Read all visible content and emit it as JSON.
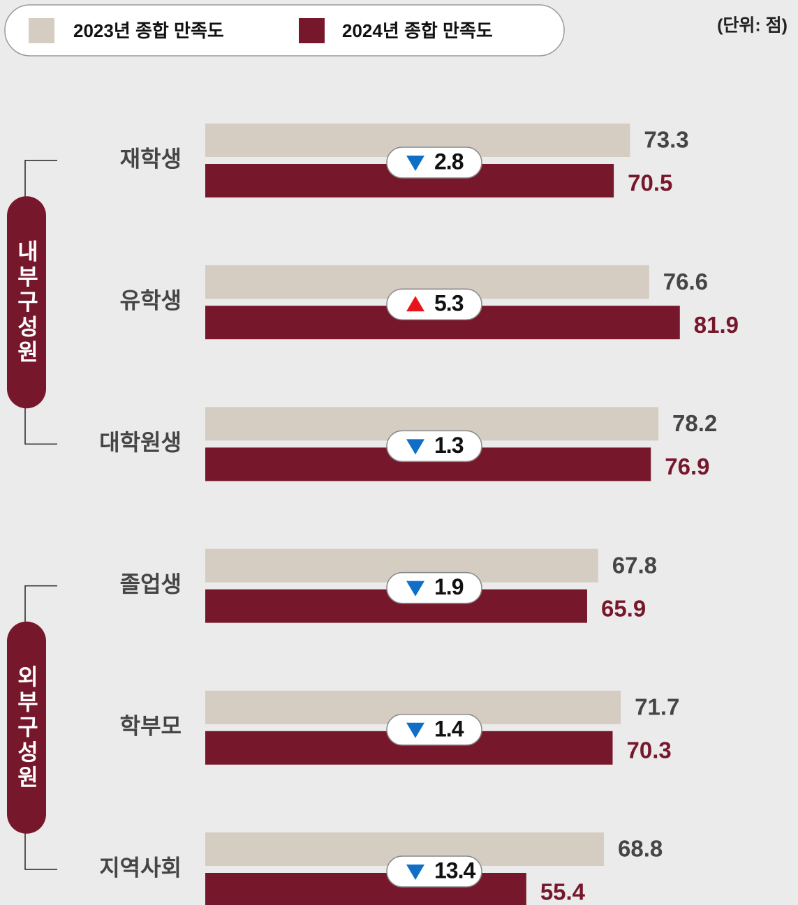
{
  "chart_data": {
    "type": "bar",
    "orientation": "horizontal",
    "unit": "(단위: 점)",
    "series": [
      {
        "name": "2023년 종합 만족도",
        "color": "#d5ccc2",
        "label_color": "#454545",
        "values": [
          73.3,
          76.6,
          78.2,
          67.8,
          71.7,
          68.8
        ]
      },
      {
        "name": "2024년 종합 만족도",
        "color": "#76172b",
        "label_color": "#76172b",
        "values": [
          70.5,
          81.9,
          76.9,
          65.9,
          70.3,
          55.4
        ]
      }
    ],
    "groups": [
      {
        "name": "내부구성원",
        "categories": [
          "재학생",
          "유학생",
          "대학원생"
        ]
      },
      {
        "name": "외부구성원",
        "categories": [
          "졸업생",
          "학부모",
          "지역사회"
        ]
      }
    ],
    "diffs": [
      2.8,
      5.3,
      1.3,
      1.9,
      1.4,
      13.4
    ],
    "up_color": "#e8141c",
    "down_color": "#0f6fc6"
  }
}
